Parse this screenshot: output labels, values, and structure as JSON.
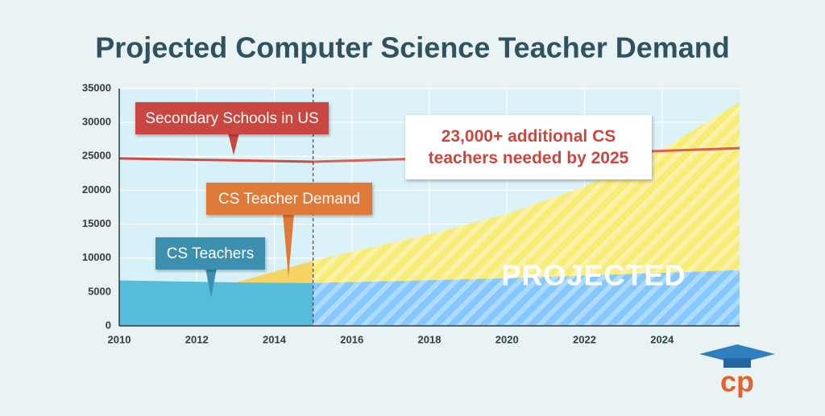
{
  "chart_data": {
    "type": "area",
    "title": "Projected Computer Science Teacher Demand",
    "xlim": [
      2010,
      2026
    ],
    "xticks": [
      2010,
      2012,
      2014,
      2016,
      2018,
      2020,
      2022,
      2024
    ],
    "ylim": [
      0,
      35000
    ],
    "yticks": [
      0,
      5000,
      10000,
      15000,
      20000,
      25000,
      30000,
      35000
    ],
    "grid": true,
    "projected_from": 2015,
    "series": [
      {
        "name": "CS Teacher Demand",
        "kind": "area",
        "color": "#f6d463",
        "x": [
          2013,
          2015,
          2018,
          2020,
          2022,
          2024,
          2026
        ],
        "values": [
          6400,
          9600,
          13500,
          16500,
          20500,
          26000,
          33000
        ]
      },
      {
        "name": "CS Teachers",
        "kind": "area",
        "color": "#55bcd9",
        "x": [
          2010,
          2013,
          2015,
          2020,
          2026
        ],
        "values": [
          6700,
          6400,
          6300,
          7000,
          8200
        ]
      },
      {
        "name": "Secondary Schools in US",
        "kind": "line",
        "color": "#d24b43",
        "x": [
          2010,
          2015,
          2020,
          2026
        ],
        "values": [
          24700,
          24200,
          25000,
          26200
        ]
      }
    ],
    "annotations": {
      "note": "23,000+ additional CS teachers needed by 2025",
      "projected": "PROJECTED"
    },
    "logo": "cp"
  }
}
